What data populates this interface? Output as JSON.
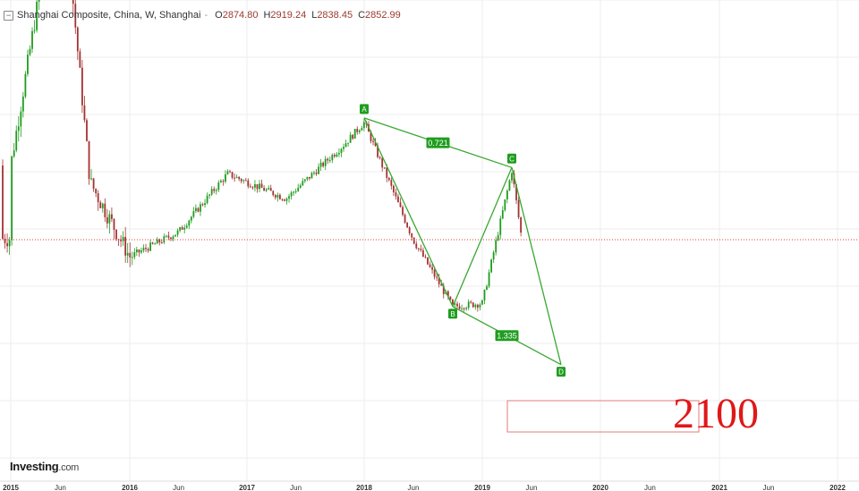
{
  "legend": {
    "symbol_title": "Shanghai Composite, China, W, Shanghai",
    "ohlc": [
      {
        "key": "O",
        "value": "2874.80"
      },
      {
        "key": "H",
        "value": "2919.24"
      },
      {
        "key": "L",
        "value": "2838.45"
      },
      {
        "key": "C",
        "value": "2852.99"
      }
    ],
    "menu_icon": "dropdown-dash-icon",
    "collapse_icon": "collapse-minus-icon"
  },
  "brand": {
    "name": "Investing",
    "suffix": ".com"
  },
  "colors": {
    "up": "#1e9c1e",
    "down": "#a33232",
    "pattern": "#3aa832",
    "pattern_label_bg": "#1f9d1f",
    "price_line": "#e0433c",
    "target_box": "#e27d7d",
    "target_text": "#e01818",
    "grid": "#eeeeee"
  },
  "chart_data": {
    "type": "candlestick",
    "title": "Shanghai Composite, China, W, Shanghai",
    "x_ticks": [
      "2015",
      "Jun",
      "2016",
      "Jun",
      "2017",
      "Jun",
      "2018",
      "Jun",
      "2019",
      "Jun",
      "2020",
      "Jun",
      "2021",
      "Jun",
      "2022"
    ],
    "x_range": [
      "2015-01",
      "2022-01"
    ],
    "y_range_approx": [
      2000,
      5100
    ],
    "last_close": 2852.99,
    "series_shape": [
      {
        "t": "2015-01",
        "close": 3300
      },
      {
        "t": "2015-06",
        "close": 5100
      },
      {
        "t": "2015-09",
        "close": 3200
      },
      {
        "t": "2016-01",
        "close": 2750
      },
      {
        "t": "2016-06",
        "close": 2900
      },
      {
        "t": "2016-11",
        "close": 3250
      },
      {
        "t": "2017-05",
        "close": 3100
      },
      {
        "t": "2017-11",
        "close": 3430
      },
      {
        "t": "2018-01",
        "close": 3560
      },
      {
        "t": "2018-06",
        "close": 2850
      },
      {
        "t": "2018-10",
        "close": 2450
      },
      {
        "t": "2019-01",
        "close": 2470
      },
      {
        "t": "2019-04",
        "close": 3270
      },
      {
        "t": "2019-05",
        "close": 2860
      }
    ],
    "pattern": {
      "points": [
        {
          "label": "A",
          "t": "2018-01",
          "price": 3587
        },
        {
          "label": "B",
          "t": "2018-10",
          "price": 2450
        },
        {
          "label": "C",
          "t": "2019-04",
          "price": 3288
        },
        {
          "label": "D",
          "t": "2019-09",
          "price": 2100
        }
      ],
      "ratios": [
        {
          "label": "0.721",
          "between": [
            "A",
            "C"
          ]
        },
        {
          "label": "1.335",
          "between": [
            "B",
            "D"
          ]
        }
      ]
    },
    "target": {
      "label": "2100"
    }
  }
}
